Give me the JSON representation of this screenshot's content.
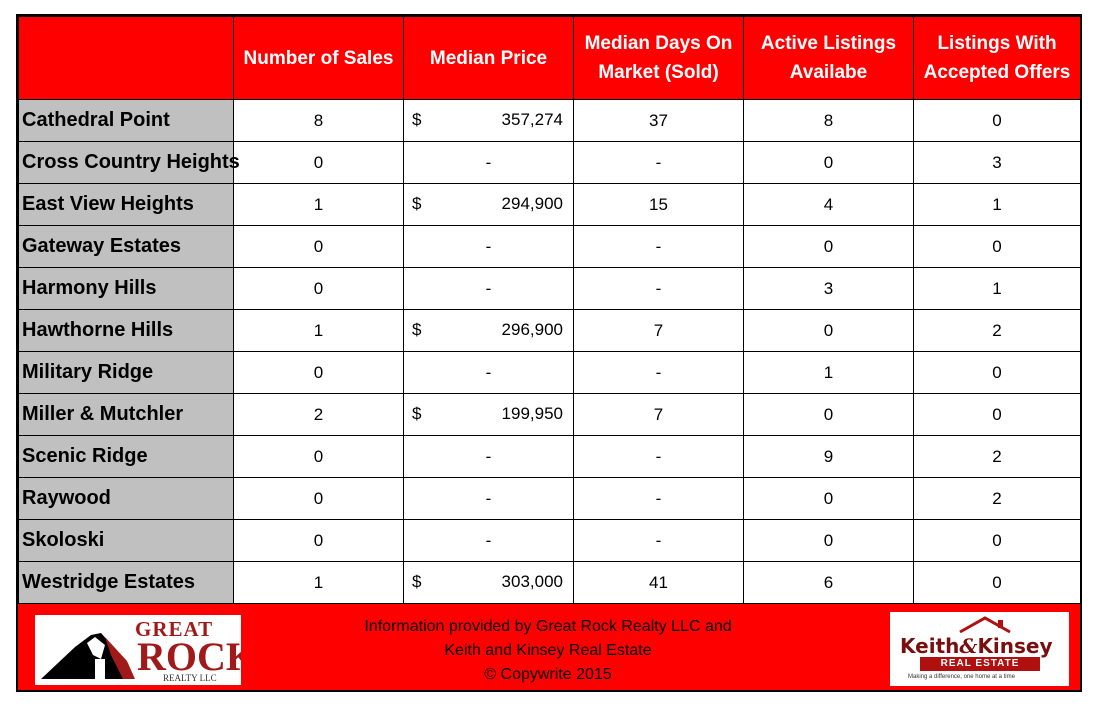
{
  "headers": [
    "",
    "Number of Sales",
    "Median Price",
    "Median Days On Market (Sold)",
    "Active Listings Availabe",
    "Listings With Accepted Offers"
  ],
  "rows": [
    {
      "name": "Cathedral Point",
      "sales": "8",
      "price_symbol": "$",
      "price": "357,274",
      "days": "37",
      "active": "8",
      "accepted": "0"
    },
    {
      "name": "Cross Country Heights",
      "sales": "0",
      "price_symbol": "",
      "price": "-",
      "days": "-",
      "active": "0",
      "accepted": "3"
    },
    {
      "name": "East View Heights",
      "sales": "1",
      "price_symbol": "$",
      "price": "294,900",
      "days": "15",
      "active": "4",
      "accepted": "1"
    },
    {
      "name": "Gateway Estates",
      "sales": "0",
      "price_symbol": "",
      "price": "-",
      "days": "-",
      "active": "0",
      "accepted": "0"
    },
    {
      "name": "Harmony Hills",
      "sales": "0",
      "price_symbol": "",
      "price": "-",
      "days": "-",
      "active": "3",
      "accepted": "1"
    },
    {
      "name": "Hawthorne Hills",
      "sales": "1",
      "price_symbol": "$",
      "price": "296,900",
      "days": "7",
      "active": "0",
      "accepted": "2"
    },
    {
      "name": "Military Ridge",
      "sales": "0",
      "price_symbol": "",
      "price": "-",
      "days": "-",
      "active": "1",
      "accepted": "0"
    },
    {
      "name": "Miller &  Mutchler",
      "sales": "2",
      "price_symbol": "$",
      "price": "199,950",
      "days": "7",
      "active": "0",
      "accepted": "0"
    },
    {
      "name": "Scenic Ridge",
      "sales": "0",
      "price_symbol": "",
      "price": "-",
      "days": "-",
      "active": "9",
      "accepted": "2"
    },
    {
      "name": "Raywood",
      "sales": "0",
      "price_symbol": "",
      "price": "-",
      "days": "-",
      "active": "0",
      "accepted": "2"
    },
    {
      "name": "Skoloski",
      "sales": "0",
      "price_symbol": "",
      "price": "-",
      "days": "-",
      "active": "0",
      "accepted": "0"
    },
    {
      "name": "Westridge Estates",
      "sales": "1",
      "price_symbol": "$",
      "price": "303,000",
      "days": "41",
      "active": "6",
      "accepted": "0"
    }
  ],
  "footer": {
    "line1": "Information provided by Great Rock Realty LLC and",
    "line2": "Keith and Kinsey Real Estate",
    "line3": "© Copywrite 2015"
  },
  "logos": {
    "great_rock_top": "GREAT",
    "great_rock_main": "ROCK",
    "great_rock_sub": "REALTY LLC",
    "keith_kinsey_name": "Keith",
    "keith_kinsey_amp": "&",
    "keith_kinsey_name2": "Kinsey",
    "keith_kinsey_sub": "REAL ESTATE",
    "keith_kinsey_tag": "Making a difference, one home at a time"
  },
  "colors": {
    "header_bg": "#ff0000",
    "name_col_bg": "#c0c0c0",
    "logo_red": "#a11a1a"
  }
}
